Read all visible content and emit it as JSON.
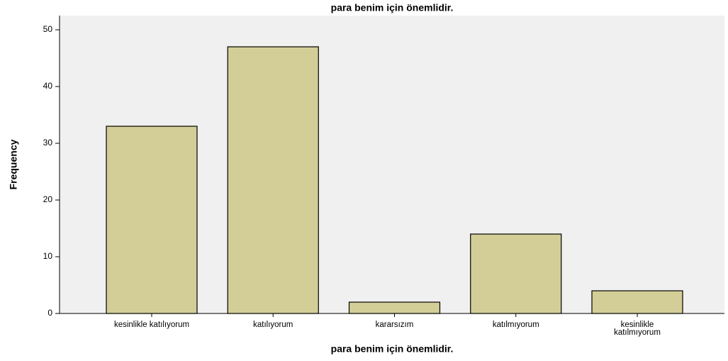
{
  "chart_data": {
    "type": "bar",
    "title": "para benim için önemlidir.",
    "x_label": "para benim için önemlidir.",
    "y_label": "Frequency",
    "categories": [
      "kesinlikle katılıyorum",
      "katılıyorum",
      "kararsızım",
      "katılmıyorum",
      "kesinlikle katılmıyorum"
    ],
    "values": [
      33,
      47,
      2,
      14,
      4
    ],
    "color": "#d3ce97",
    "ylim": [
      0,
      52.5
    ],
    "yticks": [
      0,
      10,
      20,
      30,
      40,
      50
    ],
    "grid": false
  }
}
